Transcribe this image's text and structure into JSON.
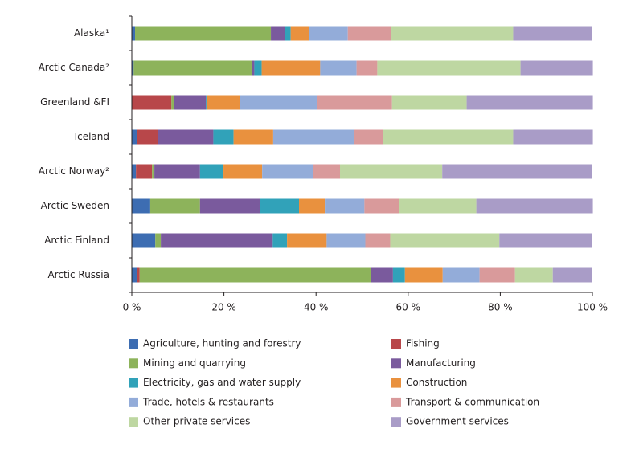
{
  "chart_data": {
    "type": "stacked-bar-horizontal",
    "categories": [
      "Alaska¹",
      "Arctic Canada²",
      "Greenland &FI",
      "Iceland",
      "Arctic Norway²",
      "Arctic Sweden",
      "Arctic Finland",
      "Arctic Russia"
    ],
    "series": [
      {
        "name": "Agriculture, hunting and forestry",
        "color": "#3d6db2",
        "values": [
          0.7,
          0.4,
          0,
          1.2,
          0.9,
          4.0,
          5.1,
          1.2
        ]
      },
      {
        "name": "Fishing",
        "color": "#b8474a",
        "values": [
          0,
          0,
          8.6,
          4.5,
          3.5,
          0,
          0,
          0.5
        ]
      },
      {
        "name": "Mining and quarrying",
        "color": "#8db35b",
        "values": [
          29.5,
          25.7,
          0.5,
          0,
          0.5,
          10.8,
          1.2,
          50.3
        ]
      },
      {
        "name": "Manufacturing",
        "color": "#7a5a9d",
        "values": [
          3.1,
          0.5,
          7.0,
          12.0,
          9.9,
          13.1,
          24.3,
          4.7
        ]
      },
      {
        "name": "Electricity, gas and water supply",
        "color": "#31a2b9",
        "values": [
          1.2,
          1.6,
          0.2,
          4.4,
          5.1,
          8.4,
          3.1,
          2.6
        ]
      },
      {
        "name": "Construction",
        "color": "#e9913e",
        "values": [
          4.0,
          12.7,
          7.2,
          8.6,
          8.4,
          5.6,
          8.6,
          8.2
        ]
      },
      {
        "name": "Trade, hotels & restaurants",
        "color": "#93acd9",
        "values": [
          8.4,
          7.9,
          16.8,
          17.5,
          11.0,
          8.6,
          8.4,
          8.0
        ]
      },
      {
        "name": "Transport & communication",
        "color": "#d99a9b",
        "values": [
          9.4,
          4.5,
          16.2,
          6.3,
          5.9,
          7.5,
          5.4,
          7.7
        ]
      },
      {
        "name": "Other private services",
        "color": "#bed7a2",
        "values": [
          26.5,
          31.1,
          16.2,
          28.3,
          22.2,
          16.8,
          23.7,
          8.2
        ]
      },
      {
        "name": "Government services",
        "color": "#a99cc7",
        "values": [
          17.2,
          15.7,
          27.4,
          17.3,
          32.6,
          25.3,
          20.2,
          8.6
        ]
      }
    ],
    "xlim": [
      0,
      100
    ],
    "xticks": [
      {
        "value": 0,
        "label": "0 %"
      },
      {
        "value": 20,
        "label": "20 %"
      },
      {
        "value": 40,
        "label": "40 %"
      },
      {
        "value": 60,
        "label": "60 %"
      },
      {
        "value": 80,
        "label": "80 %"
      },
      {
        "value": 100,
        "label": "100 %"
      }
    ],
    "legend": "bottom"
  }
}
